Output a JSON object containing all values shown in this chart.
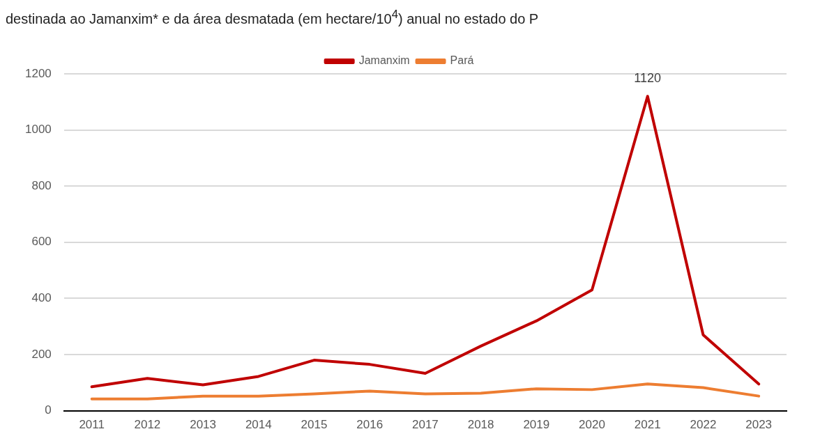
{
  "chart_data": {
    "type": "line",
    "title": "destinada ao Jamanxim* e da área desmatada (em hectare/10$^{4}$) anual no estado do P",
    "categories": [
      "2011",
      "2012",
      "2013",
      "2014",
      "2015",
      "2016",
      "2017",
      "2018",
      "2019",
      "2020",
      "2021",
      "2022",
      "2023"
    ],
    "series": [
      {
        "name": "Jamanxim",
        "color": "#c00000",
        "values": [
          85,
          115,
          92,
          122,
          180,
          165,
          133,
          230,
          320,
          430,
          1120,
          270,
          95
        ],
        "value_labels": [
          null,
          null,
          null,
          null,
          null,
          null,
          null,
          null,
          null,
          null,
          "1120",
          null,
          null
        ]
      },
      {
        "name": "Pará",
        "color": "#ed7d31",
        "values": [
          42,
          42,
          52,
          52,
          60,
          70,
          60,
          62,
          78,
          75,
          95,
          82,
          52
        ]
      }
    ],
    "ylim": [
      0,
      1200
    ],
    "yticks": [
      0,
      200,
      400,
      600,
      800,
      1000,
      1200
    ],
    "grid": "y",
    "legend": "top",
    "marker": "none",
    "line_style": "solid"
  }
}
